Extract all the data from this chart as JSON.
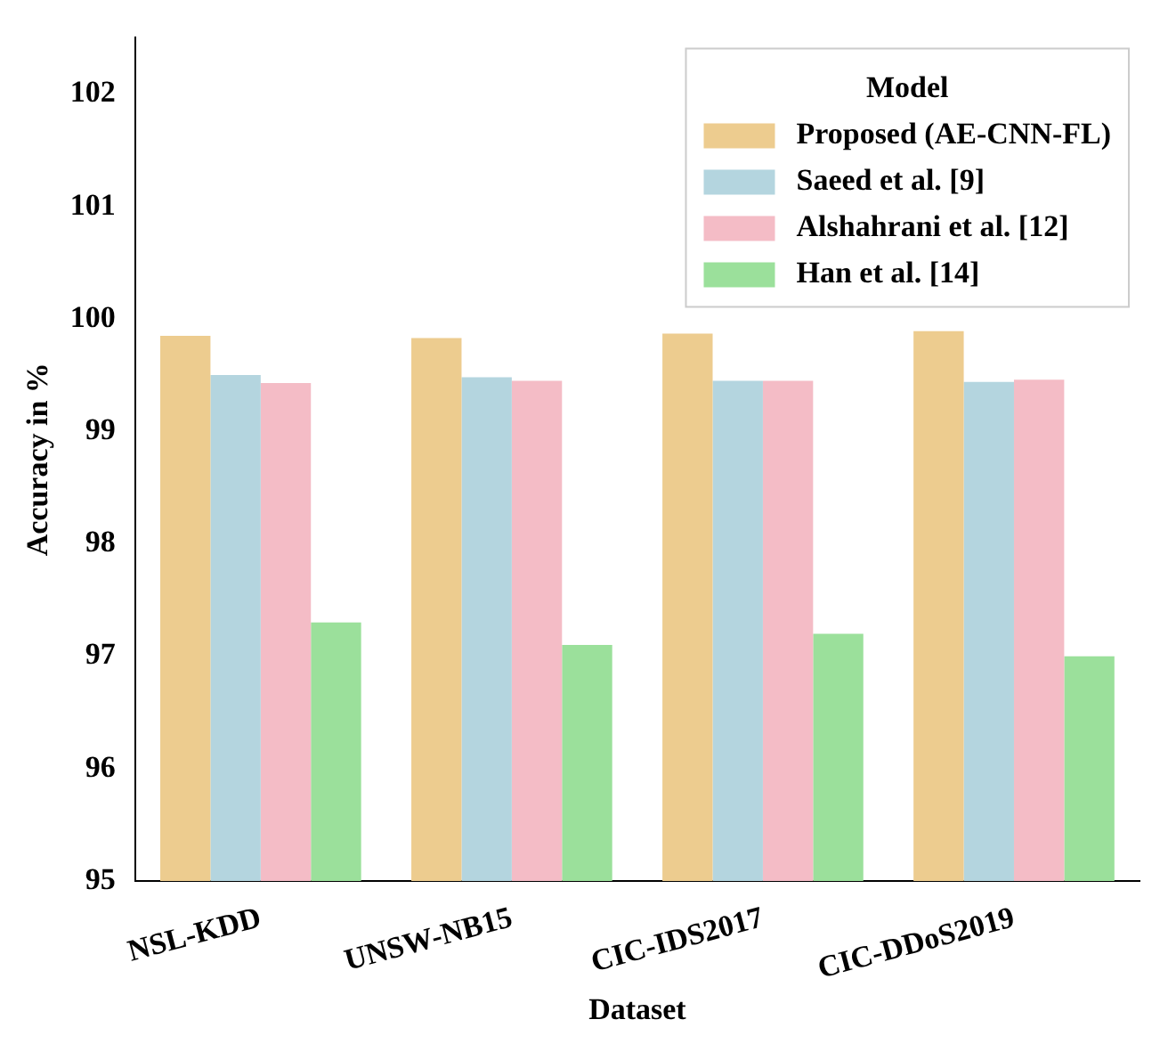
{
  "chart_data": {
    "type": "bar",
    "xlabel": "Dataset",
    "ylabel": "Accuracy in %",
    "legend_title": "Model",
    "legend": "top right",
    "grid": false,
    "categories": [
      "NSL-KDD",
      "UNSW-NB15",
      "CIC-IDS2017",
      "CIC-DDoS2019"
    ],
    "ylim": [
      95,
      102.5
    ],
    "yticks": [
      95,
      96,
      97,
      98,
      99,
      100,
      101,
      102
    ],
    "series": [
      {
        "name": "Proposed (AE-CNN-FL)",
        "color": "#edcc8f",
        "values": [
          99.85,
          99.83,
          99.87,
          99.89
        ]
      },
      {
        "name": "Saeed et al. [9]",
        "color": "#b4d5df",
        "values": [
          99.5,
          99.48,
          99.45,
          99.44
        ]
      },
      {
        "name": "Alshahrani et al. [12]",
        "color": "#f4bcc6",
        "values": [
          99.43,
          99.45,
          99.45,
          99.46
        ]
      },
      {
        "name": "Han et al. [14]",
        "color": "#9be09b",
        "values": [
          97.3,
          97.1,
          97.2,
          97.0
        ]
      }
    ]
  }
}
